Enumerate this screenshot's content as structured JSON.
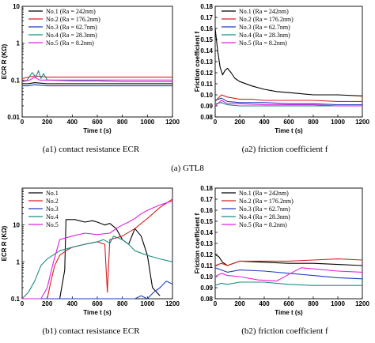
{
  "captions": {
    "a1": "(a1) contact resistance ECR",
    "a2": "(a2) friction coefficient f",
    "a": "(a) GTL8",
    "b1": "(b1) contact resistance ECR",
    "b2": "(b2) friction coefficient f"
  },
  "chart_data": [
    {
      "id": "a1",
      "type": "line",
      "xlabel": "Time t (s)",
      "ylabel": "ECR R (KΩ)",
      "xlim": [
        0,
        1200
      ],
      "ylim": [
        0.01,
        10
      ],
      "yscale": "log",
      "xticks": [
        0,
        200,
        400,
        600,
        800,
        1000,
        1200
      ],
      "yticks": [
        0.01,
        0.1,
        1,
        10
      ],
      "yticklabels": [
        "0.01",
        "0.1",
        "1",
        "10"
      ],
      "legend": [
        "No.1  (Ra = 242nm)",
        "No.2 (Ra = 176.2nm)",
        "No.3 (Ra = 62.7nm)",
        "No.4 (Ra = 28.3nm)",
        "No.5 (Ra = 8.2nm)"
      ],
      "series": [
        {
          "name": "No.1",
          "color": "#000000",
          "x": [
            0,
            50,
            100,
            200,
            400,
            600,
            800,
            1000,
            1200
          ],
          "y": [
            0.08,
            0.08,
            0.085,
            0.08,
            0.08,
            0.08,
            0.08,
            0.08,
            0.08
          ]
        },
        {
          "name": "No.2",
          "color": "#d62020",
          "x": [
            0,
            50,
            100,
            200,
            400,
            600,
            800,
            1000,
            1200
          ],
          "y": [
            0.11,
            0.12,
            0.13,
            0.12,
            0.12,
            0.12,
            0.12,
            0.12,
            0.12
          ]
        },
        {
          "name": "No.3",
          "color": "#1f3fbf",
          "x": [
            0,
            50,
            100,
            200,
            400,
            600,
            800,
            1000,
            1200
          ],
          "y": [
            0.07,
            0.07,
            0.075,
            0.07,
            0.07,
            0.07,
            0.07,
            0.07,
            0.07
          ]
        },
        {
          "name": "No.4",
          "color": "#1a8f80",
          "x": [
            0,
            40,
            80,
            110,
            130,
            150,
            170,
            200,
            400,
            600,
            800,
            1000,
            1200
          ],
          "y": [
            0.09,
            0.1,
            0.16,
            0.12,
            0.18,
            0.11,
            0.15,
            0.1,
            0.095,
            0.095,
            0.09,
            0.09,
            0.09
          ]
        },
        {
          "name": "No.5",
          "color": "#e020e0",
          "x": [
            0,
            60,
            100,
            140,
            200,
            400,
            600,
            800,
            1000,
            1200
          ],
          "y": [
            0.09,
            0.1,
            0.12,
            0.1,
            0.1,
            0.1,
            0.1,
            0.1,
            0.1,
            0.1
          ]
        }
      ]
    },
    {
      "id": "a2",
      "type": "line",
      "xlabel": "Time t (s)",
      "ylabel": "Friction coefficient f",
      "xlim": [
        0,
        1200
      ],
      "ylim": [
        0.08,
        0.18
      ],
      "xticks": [
        0,
        200,
        400,
        600,
        800,
        1000,
        1200
      ],
      "yticks": [
        0.08,
        0.09,
        0.1,
        0.11,
        0.12,
        0.13,
        0.14,
        0.15,
        0.16,
        0.17,
        0.18
      ],
      "yticklabels": [
        "0.08",
        "0.09",
        "0.10",
        "0.11",
        "0.12",
        "0.13",
        "0.14",
        "0.15",
        "0.16",
        "0.17",
        "0.18"
      ],
      "legend": [
        "No.1  (Ra = 242nm)",
        "No.2 (Ra = 176.2nm)",
        "No.3 (Ra = 62.7nm)",
        "No.4 (Ra = 28.3nm)",
        "No.5 (Ra = 8.2nm)"
      ],
      "series": [
        {
          "name": "No.1",
          "color": "#000000",
          "x": [
            0,
            20,
            40,
            60,
            80,
            100,
            130,
            160,
            200,
            300,
            400,
            500,
            600,
            800,
            1000,
            1200
          ],
          "y": [
            0.16,
            0.14,
            0.125,
            0.118,
            0.122,
            0.124,
            0.12,
            0.115,
            0.112,
            0.108,
            0.105,
            0.103,
            0.102,
            0.1,
            0.1,
            0.099
          ]
        },
        {
          "name": "No.2",
          "color": "#d62020",
          "x": [
            0,
            50,
            100,
            200,
            300,
            400,
            600,
            800,
            1000,
            1200
          ],
          "y": [
            0.094,
            0.1,
            0.098,
            0.096,
            0.096,
            0.095,
            0.095,
            0.095,
            0.094,
            0.094
          ]
        },
        {
          "name": "No.3",
          "color": "#1f3fbf",
          "x": [
            0,
            50,
            100,
            200,
            400,
            600,
            800,
            1000,
            1200
          ],
          "y": [
            0.095,
            0.097,
            0.094,
            0.093,
            0.093,
            0.092,
            0.092,
            0.091,
            0.091
          ]
        },
        {
          "name": "No.4",
          "color": "#1a8f80",
          "x": [
            0,
            50,
            100,
            200,
            400,
            600,
            800,
            1000,
            1200
          ],
          "y": [
            0.092,
            0.093,
            0.091,
            0.09,
            0.09,
            0.09,
            0.09,
            0.09,
            0.09
          ]
        },
        {
          "name": "No.5",
          "color": "#e020e0",
          "x": [
            0,
            50,
            100,
            200,
            400,
            600,
            800,
            1000,
            1200
          ],
          "y": [
            0.09,
            0.095,
            0.092,
            0.092,
            0.091,
            0.091,
            0.091,
            0.09,
            0.09
          ]
        }
      ]
    },
    {
      "id": "b1",
      "type": "line",
      "xlabel": "Time t (s)",
      "ylabel": "ECR R (KΩ)",
      "xlim": [
        0,
        1200
      ],
      "ylim": [
        0.1,
        100
      ],
      "yscale": "log",
      "xticks": [
        0,
        200,
        400,
        600,
        800,
        1000,
        1200
      ],
      "yticks": [
        0.1,
        1,
        10
      ],
      "yticklabels": [
        "0.1",
        "1",
        "10"
      ],
      "legend": [
        "No.1",
        "No.2",
        "No.3",
        "No.4",
        "No.5"
      ],
      "series": [
        {
          "name": "No.1",
          "color": "#000000",
          "x": [
            0,
            300,
            340,
            350,
            420,
            500,
            560,
            600,
            660,
            700,
            750,
            800,
            850,
            900,
            950,
            1000,
            1040,
            1100
          ],
          "y": [
            0.1,
            0.1,
            0.6,
            14,
            14,
            12,
            13,
            12,
            10,
            11,
            8,
            4,
            3,
            8,
            5,
            1.5,
            0.2,
            0.12
          ]
        },
        {
          "name": "No.2",
          "color": "#d62020",
          "x": [
            0,
            200,
            230,
            260,
            300,
            350,
            400,
            500,
            600,
            660,
            680,
            700,
            800,
            900,
            1000,
            1100,
            1200
          ],
          "y": [
            0.1,
            0.1,
            0.3,
            0.8,
            1.5,
            2,
            2.5,
            3,
            3.5,
            3,
            0.15,
            4,
            5,
            8,
            15,
            30,
            50
          ]
        },
        {
          "name": "No.3",
          "color": "#1f3fbf",
          "x": [
            0,
            200,
            400,
            600,
            800,
            900,
            950,
            1000,
            1050,
            1100,
            1150,
            1200
          ],
          "y": [
            0.1,
            0.1,
            0.1,
            0.1,
            0.1,
            0.1,
            0.12,
            0.1,
            0.15,
            0.2,
            0.3,
            0.25
          ]
        },
        {
          "name": "No.4",
          "color": "#1a8f80",
          "x": [
            0,
            50,
            100,
            150,
            200,
            300,
            400,
            500,
            600,
            650,
            700,
            730,
            800,
            850,
            900,
            1000,
            1100,
            1200
          ],
          "y": [
            0.1,
            0.15,
            0.3,
            0.8,
            1.2,
            2,
            2.5,
            3,
            3.5,
            4,
            3.2,
            5,
            4,
            3,
            2,
            1.5,
            1.2,
            1
          ]
        },
        {
          "name": "No.5",
          "color": "#e020e0",
          "x": [
            0,
            150,
            200,
            250,
            300,
            400,
            500,
            600,
            700,
            750,
            800,
            850,
            900,
            950,
            1000,
            1100,
            1200
          ],
          "y": [
            0.1,
            0.1,
            0.2,
            1,
            4,
            5,
            6,
            5.5,
            6,
            8,
            10,
            12,
            15,
            20,
            25,
            35,
            45
          ]
        }
      ]
    },
    {
      "id": "b2",
      "type": "line",
      "xlabel": "Time t (s)",
      "ylabel": "Friction coefficient f",
      "xlim": [
        0,
        1200
      ],
      "ylim": [
        0.08,
        0.18
      ],
      "xticks": [
        0,
        200,
        400,
        600,
        800,
        1000,
        1200
      ],
      "yticks": [
        0.08,
        0.09,
        0.1,
        0.11,
        0.12,
        0.13,
        0.14,
        0.15,
        0.16,
        0.17,
        0.18
      ],
      "yticklabels": [
        "0.08",
        "0.09",
        "0.10",
        "0.11",
        "0.12",
        "0.13",
        "0.14",
        "0.15",
        "0.16",
        "0.17",
        "0.18"
      ],
      "legend": [
        "No.1  (Ra = 242nm)",
        "No.2 (Ra = 176.2nm)",
        "No.3 (Ra = 62.7nm)",
        "No.4 (Ra = 28.3nm)",
        "No.5 (Ra = 8.2nm)"
      ],
      "series": [
        {
          "name": "No.1",
          "color": "#000000",
          "x": [
            0,
            30,
            60,
            100,
            200,
            400,
            600,
            800,
            1000,
            1200
          ],
          "y": [
            0.12,
            0.118,
            0.113,
            0.11,
            0.114,
            0.113,
            0.112,
            0.112,
            0.111,
            0.11
          ]
        },
        {
          "name": "No.2",
          "color": "#d62020",
          "x": [
            0,
            50,
            100,
            200,
            400,
            600,
            800,
            1000,
            1200
          ],
          "y": [
            0.11,
            0.112,
            0.11,
            0.114,
            0.114,
            0.114,
            0.115,
            0.116,
            0.115
          ]
        },
        {
          "name": "No.3",
          "color": "#1f3fbf",
          "x": [
            0,
            50,
            100,
            200,
            400,
            600,
            800,
            1000,
            1200
          ],
          "y": [
            0.108,
            0.106,
            0.104,
            0.106,
            0.105,
            0.103,
            0.101,
            0.099,
            0.098
          ]
        },
        {
          "name": "No.4",
          "color": "#1a8f80",
          "x": [
            0,
            50,
            100,
            200,
            400,
            600,
            800,
            1000,
            1200
          ],
          "y": [
            0.092,
            0.094,
            0.093,
            0.095,
            0.095,
            0.093,
            0.092,
            0.092,
            0.092
          ]
        },
        {
          "name": "No.5",
          "color": "#e020e0",
          "x": [
            0,
            50,
            100,
            200,
            350,
            500,
            600,
            700,
            800,
            1000,
            1200
          ],
          "y": [
            0.1,
            0.103,
            0.101,
            0.1,
            0.097,
            0.096,
            0.102,
            0.108,
            0.107,
            0.105,
            0.104
          ]
        }
      ]
    }
  ]
}
